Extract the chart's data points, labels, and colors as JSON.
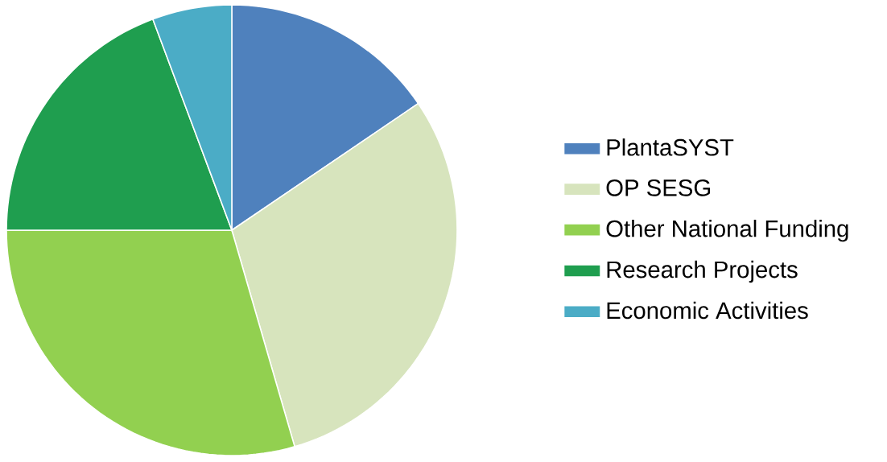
{
  "chart_data": {
    "type": "pie",
    "categories": [
      "PlantaSYST",
      "OP SESG",
      "Other National Funding",
      "Research Projects",
      "Economic Activities"
    ],
    "values": [
      15.5,
      30,
      29.5,
      19.3,
      5.7
    ],
    "colors": [
      "#4f81bd",
      "#d7e4bd",
      "#92d050",
      "#1f9e4f",
      "#4bacc6"
    ],
    "legend": "right"
  }
}
